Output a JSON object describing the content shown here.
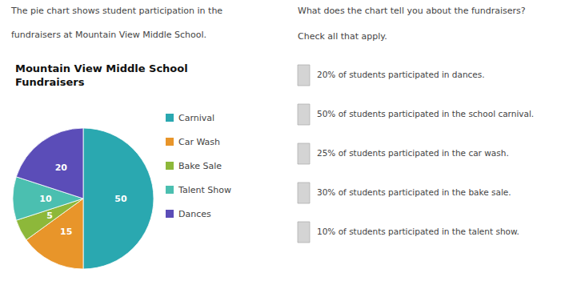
{
  "chart_data": {
    "type": "pie",
    "title": "Mountain View Middle School\nFundraisers",
    "categories": [
      "Carnival",
      "Car Wash",
      "Bake Sale",
      "Talent Show",
      "Dances"
    ],
    "values": [
      50,
      15,
      5,
      10,
      20
    ],
    "colors": [
      "#2AA8B0",
      "#E8952A",
      "#8DB83A",
      "#4BBFB0",
      "#5B4DB8"
    ],
    "data_labels": true,
    "legend": "right",
    "annotations": [
      "The pie chart shows student participation in the",
      "fundraisers at Mountain View Middle School.",
      "What does the chart tell you about the fundraisers?",
      "Check all that apply.",
      "20% of students participated in dances.",
      "50% of students participated in the school carnival.",
      "25% of students participated in the car wash.",
      "30% of students participated in the bake sale.",
      "10% of students participated in the talent show."
    ]
  }
}
